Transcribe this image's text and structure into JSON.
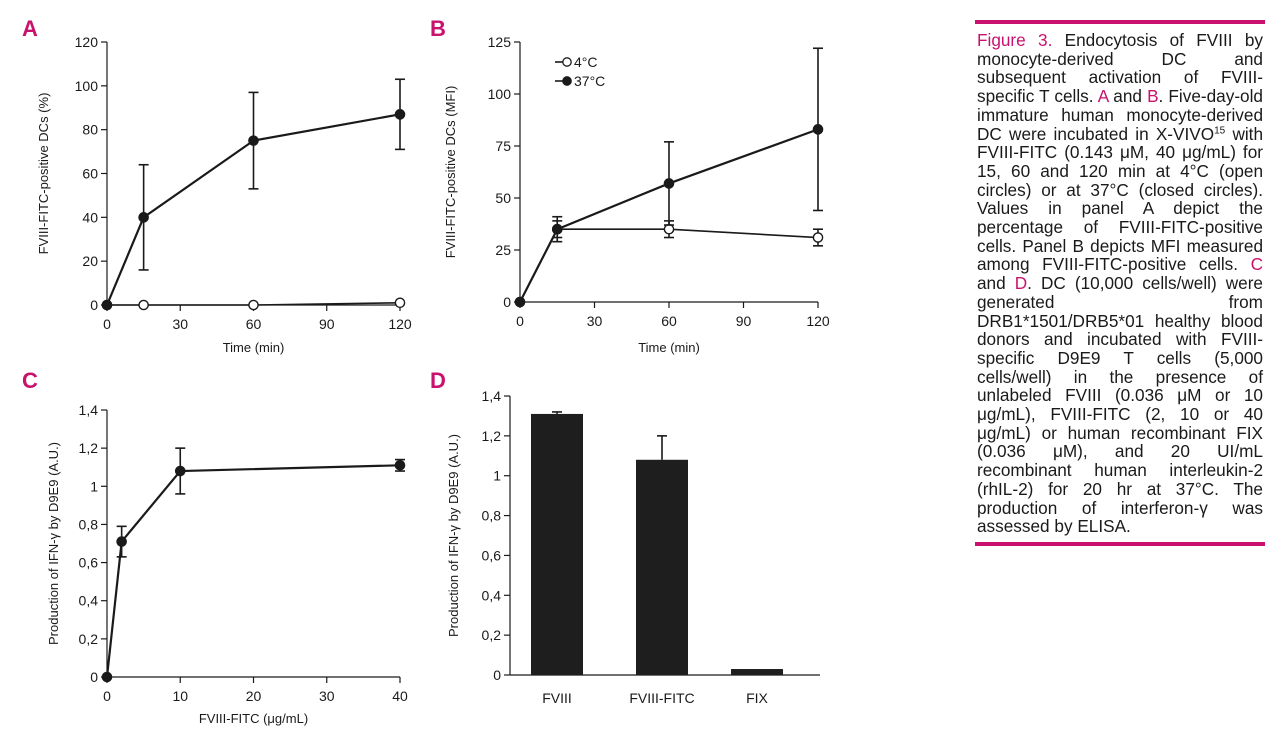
{
  "chart_data": [
    {
      "panel": "A",
      "type": "line",
      "xlabel": "Time (min)",
      "ylabel": "FVIII-FITC-positive DCs (%)",
      "xlim": [
        0,
        120
      ],
      "ylim": [
        0,
        120
      ],
      "xticks": [
        "0",
        "30",
        "60",
        "90",
        "120"
      ],
      "yticks": [
        "0",
        "20",
        "40",
        "60",
        "80",
        "100",
        "120"
      ],
      "series": [
        {
          "name": "37°C",
          "marker": "filled",
          "x": [
            0,
            15,
            60,
            120
          ],
          "y": [
            0,
            40,
            75,
            87
          ],
          "err": [
            0,
            24,
            22,
            16
          ]
        },
        {
          "name": "4°C",
          "marker": "open",
          "x": [
            0,
            15,
            60,
            120
          ],
          "y": [
            0,
            0,
            0,
            1
          ],
          "err": [
            0,
            0,
            0,
            0
          ]
        }
      ]
    },
    {
      "panel": "B",
      "type": "line",
      "xlabel": "Time (min)",
      "ylabel": "FVIII-FITC-positive DCs (MFI)",
      "xlim": [
        0,
        120
      ],
      "ylim": [
        0,
        125
      ],
      "xticks": [
        "0",
        "30",
        "60",
        "90",
        "120"
      ],
      "yticks": [
        "0",
        "25",
        "50",
        "75",
        "100",
        "125"
      ],
      "legend": [
        {
          "label": "4°C",
          "marker": "open"
        },
        {
          "label": "37°C",
          "marker": "filled"
        }
      ],
      "series": [
        {
          "name": "37°C",
          "marker": "filled",
          "x": [
            0,
            15,
            60,
            120
          ],
          "y": [
            0,
            35,
            57,
            83
          ],
          "err": [
            0,
            6,
            20,
            39
          ]
        },
        {
          "name": "4°C",
          "marker": "open",
          "x": [
            0,
            15,
            60,
            120
          ],
          "y": [
            0,
            35,
            35,
            31
          ],
          "err": [
            0,
            4,
            4,
            4
          ]
        }
      ]
    },
    {
      "panel": "C",
      "type": "line",
      "xlabel": "FVIII-FITC (μg/mL)",
      "ylabel": "Production of IFN-γ by D9E9 (A.U.)",
      "xlim": [
        0,
        40
      ],
      "ylim": [
        0,
        1.4
      ],
      "xticks": [
        "0",
        "10",
        "20",
        "30",
        "40"
      ],
      "yticks": [
        "0",
        "0,2",
        "0,4",
        "0,6",
        "0,8",
        "1",
        "1,2",
        "1,4"
      ],
      "series": [
        {
          "name": "IFN-γ",
          "marker": "filled",
          "x": [
            0,
            2,
            10,
            40
          ],
          "y": [
            0,
            0.71,
            1.08,
            1.11
          ],
          "err": [
            0,
            0.08,
            0.12,
            0.03
          ]
        }
      ]
    },
    {
      "panel": "D",
      "type": "bar",
      "ylabel": "Production of IFN-γ by D9E9 (A.U.)",
      "ylim": [
        0,
        1.4
      ],
      "yticks": [
        "0",
        "0,2",
        "0,4",
        "0,6",
        "0,8",
        "1",
        "1,2",
        "1,4"
      ],
      "categories": [
        "FVIII",
        "FVIII-FITC",
        "FIX"
      ],
      "values": [
        1.31,
        1.08,
        0.03
      ],
      "err": [
        0.01,
        0.12,
        0
      ]
    }
  ],
  "caption": {
    "label": "Figure 3.",
    "title": " Endocytosis of FVIII by monocyte-derived DC and subsequent activation of FVIII-specific T cells. ",
    "refA": "A",
    "and1": " and ",
    "refB": "B",
    "text1": ". Five-day-old immature human monocyte-derived DC were incubated in X-VIVO",
    "sup": "15",
    "text2": " with FVIII-FITC (0.143 μM, 40 μg/mL) for 15, 60 and 120 min at 4°C (open circles) or at 37°C (closed circles). Values in panel A depict the percentage of FVIII-FITC-positive cells. Panel B depicts MFI measured among FVIII-FITC-positive cells. ",
    "refC": "C",
    "and2": " and ",
    "refD": "D",
    "text3": ". DC (10,000 cells/well) were generated from DRB1*1501/DRB5*01 healthy blood donors and incubated with FVIII-specific D9E9 T cells (5,000 cells/well) in the presence of unlabeled FVIII (0.036 μM or 10 μg/mL), FVIII-FITC (2, 10 or 40 μg/mL) or human recombinant FIX (0.036 μM), and 20 UI/mL recombinant human interleukin-2 (rhIL-2) for 20 hr at 37°C. The production of interferon-γ was assessed by ELISA."
  },
  "colors": {
    "accent": "#c8126e",
    "ink": "#1a1a1a",
    "bar": "#1e1e1e"
  }
}
